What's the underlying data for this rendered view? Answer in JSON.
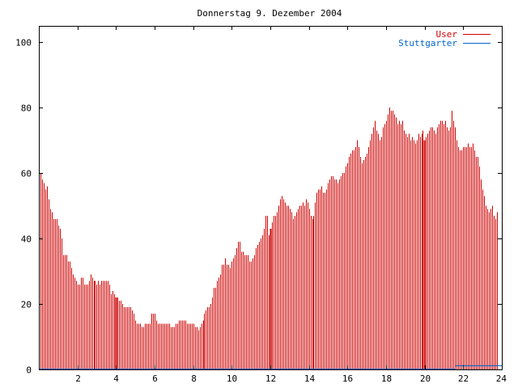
{
  "chart_data": {
    "type": "bar",
    "title": "Donnerstag 9. Dezember 2004",
    "xlim": [
      0,
      24
    ],
    "ylim": [
      0,
      105
    ],
    "x_ticks": [
      "2",
      "4",
      "6",
      "8",
      "10",
      "12",
      "14",
      "16",
      "18",
      "20",
      "22",
      "24"
    ],
    "y_ticks": [
      "0",
      "20",
      "40",
      "60",
      "80",
      "100"
    ],
    "legend_position": "top-right",
    "series": [
      {
        "name": "User",
        "color": "#cc0000",
        "interval_hours": 0.0833,
        "values": [
          60,
          60,
          58,
          57,
          55,
          56,
          52,
          49,
          48,
          46,
          46,
          46,
          44,
          43,
          40,
          35,
          35,
          35,
          33,
          33,
          31,
          29,
          28,
          27,
          26,
          26,
          28,
          28,
          26,
          26,
          26,
          27,
          29,
          28,
          27,
          27,
          26,
          27,
          26,
          27,
          27,
          27,
          27,
          27,
          26,
          23,
          24,
          23,
          22,
          22,
          21,
          21,
          20,
          19,
          19,
          19,
          19,
          19,
          18,
          17,
          15,
          14,
          14,
          14,
          13,
          13,
          14,
          14,
          14,
          14,
          17,
          17,
          17,
          15,
          14,
          14,
          14,
          14,
          14,
          14,
          14,
          14,
          13,
          13,
          13,
          14,
          14,
          15,
          15,
          15,
          15,
          15,
          14,
          14,
          14,
          14,
          14,
          13,
          13,
          12,
          13,
          14,
          15,
          17,
          18,
          19,
          19,
          20,
          22,
          25,
          25,
          27,
          28,
          29,
          32,
          32,
          34,
          32,
          32,
          31,
          33,
          34,
          35,
          37,
          39,
          39,
          36,
          36,
          35,
          35,
          35,
          33,
          33,
          34,
          35,
          37,
          38,
          39,
          40,
          41,
          43,
          47,
          47,
          41,
          43,
          45,
          47,
          47,
          48,
          50,
          52,
          53,
          52,
          51,
          50,
          50,
          49,
          48,
          46,
          47,
          48,
          49,
          50,
          50,
          51,
          50,
          52,
          51,
          49,
          47,
          46,
          47,
          51,
          54,
          55,
          55,
          56,
          54,
          54,
          55,
          57,
          58,
          59,
          59,
          58,
          58,
          57,
          58,
          59,
          60,
          60,
          62,
          63,
          65,
          66,
          67,
          67,
          68,
          70,
          68,
          65,
          63,
          64,
          65,
          66,
          68,
          70,
          72,
          74,
          76,
          73,
          72,
          70,
          71,
          74,
          75,
          76,
          78,
          80,
          79,
          79,
          78,
          77,
          75,
          76,
          75,
          76,
          73,
          72,
          71,
          72,
          70,
          71,
          70,
          69,
          70,
          72,
          71,
          72,
          73,
          70,
          71,
          72,
          73,
          74,
          74,
          73,
          72,
          74,
          75,
          76,
          76,
          75,
          76,
          74,
          73,
          74,
          79,
          76,
          74,
          70,
          68,
          67,
          67,
          68,
          68,
          68,
          69,
          68,
          68,
          69,
          67,
          65,
          65,
          62,
          58,
          55,
          53,
          50,
          49,
          48,
          49,
          50,
          47,
          46,
          48
        ]
      },
      {
        "name": "Stuttgarter",
        "color": "#0066cc",
        "flat": [
          {
            "from": 0,
            "to": 21.6,
            "value": 0
          },
          {
            "from": 21.6,
            "to": 24,
            "value": 1
          }
        ]
      }
    ]
  }
}
